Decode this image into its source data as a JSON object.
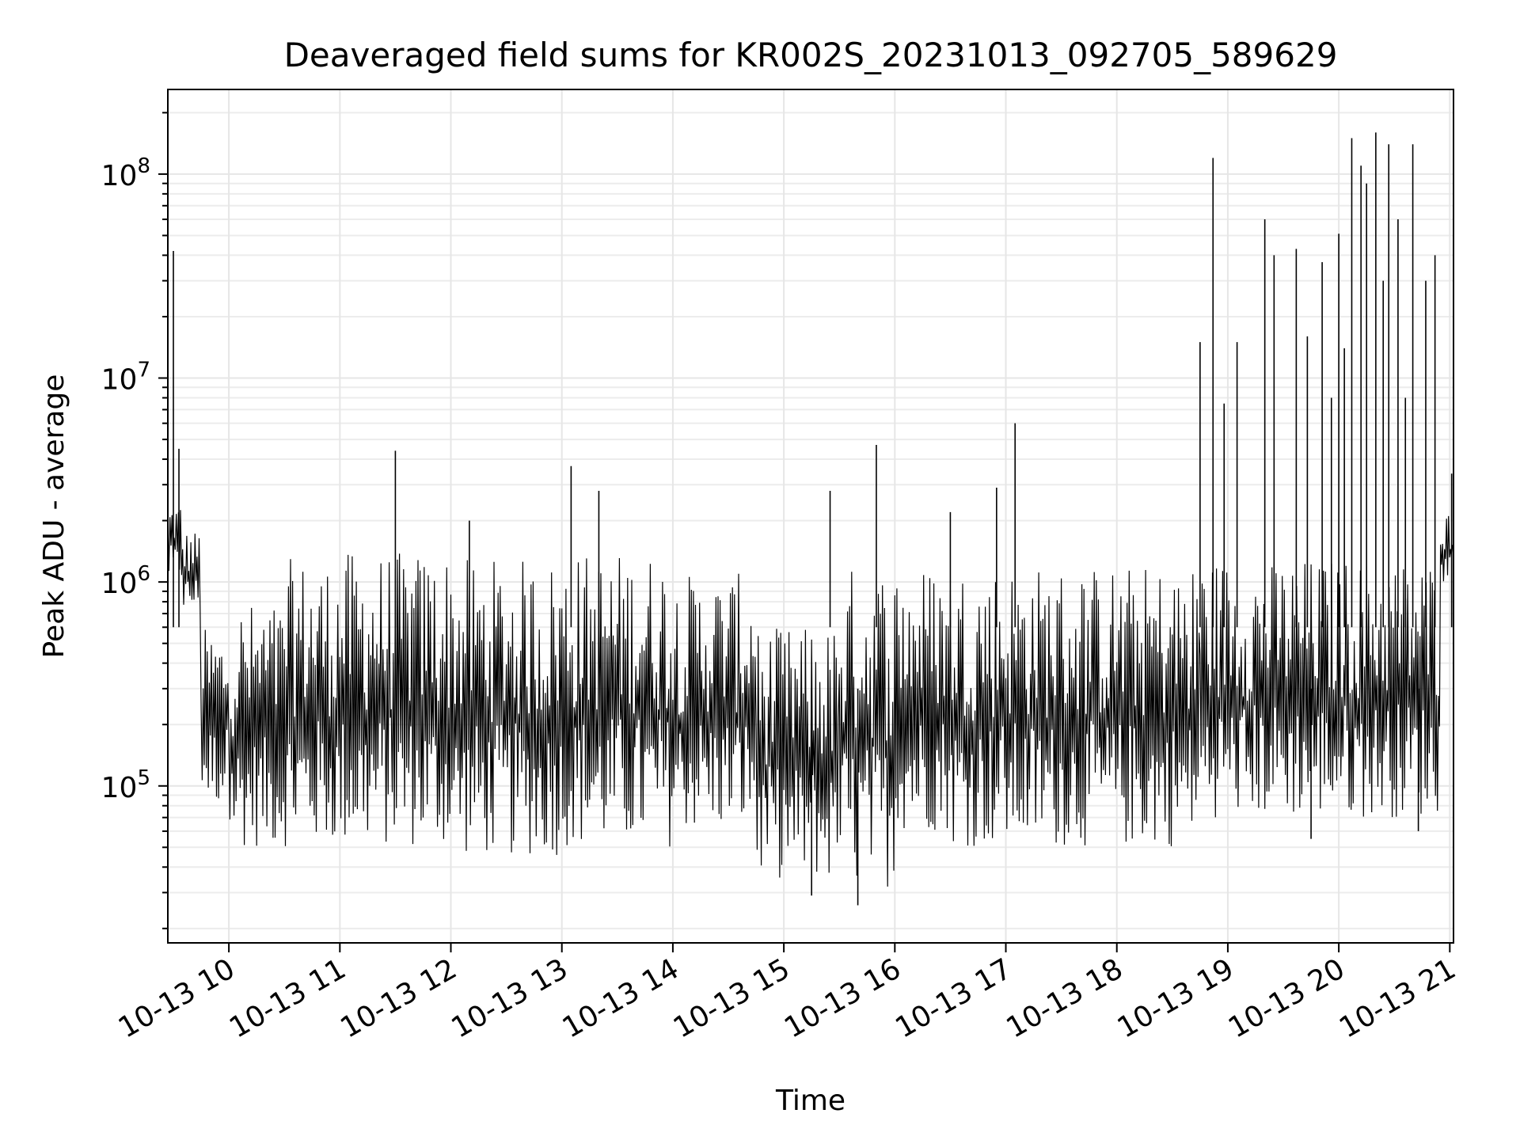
{
  "chart_data": {
    "type": "line",
    "title": "Deaveraged field sums for KR002S_20231013_092705_589629",
    "xlabel": "Time",
    "ylabel": "Peak ADU - average",
    "yscale": "log",
    "ylim": [
      17000,
      260000000
    ],
    "xlim": [
      "2023-10-13T09:27",
      "2023-10-13T21:02"
    ],
    "grid": true,
    "line_color": "#000000",
    "xticks": [
      {
        "value": "2023-10-13T10:00",
        "label": "10-13 10"
      },
      {
        "value": "2023-10-13T11:00",
        "label": "10-13 11"
      },
      {
        "value": "2023-10-13T12:00",
        "label": "10-13 12"
      },
      {
        "value": "2023-10-13T13:00",
        "label": "10-13 13"
      },
      {
        "value": "2023-10-13T14:00",
        "label": "10-13 14"
      },
      {
        "value": "2023-10-13T15:00",
        "label": "10-13 15"
      },
      {
        "value": "2023-10-13T16:00",
        "label": "10-13 16"
      },
      {
        "value": "2023-10-13T17:00",
        "label": "10-13 17"
      },
      {
        "value": "2023-10-13T18:00",
        "label": "10-13 18"
      },
      {
        "value": "2023-10-13T19:00",
        "label": "10-13 19"
      },
      {
        "value": "2023-10-13T20:00",
        "label": "10-13 20"
      },
      {
        "value": "2023-10-13T21:00",
        "label": "10-13 21"
      }
    ],
    "yticks": [
      {
        "value": 100000,
        "base": "10",
        "exp": "5"
      },
      {
        "value": 1000000,
        "base": "10",
        "exp": "6"
      },
      {
        "value": 10000000,
        "base": "10",
        "exp": "7"
      },
      {
        "value": 100000000,
        "base": "10",
        "exp": "8"
      }
    ],
    "envelope_segments": [
      {
        "start": "2023-10-13T09:27",
        "end": "2023-10-13T09:35",
        "low": 1000000,
        "high": 2500000
      },
      {
        "start": "2023-10-13T09:35",
        "end": "2023-10-13T09:45",
        "low": 700000,
        "high": 1800000
      },
      {
        "start": "2023-10-13T09:45",
        "end": "2023-10-13T10:00",
        "low": 80000,
        "high": 600000
      },
      {
        "start": "2023-10-13T10:00",
        "end": "2023-10-13T10:30",
        "low": 50000,
        "high": 800000
      },
      {
        "start": "2023-10-13T10:30",
        "end": "2023-10-13T11:00",
        "low": 50000,
        "high": 1300000
      },
      {
        "start": "2023-10-13T11:00",
        "end": "2023-10-13T12:00",
        "low": 50000,
        "high": 1400000
      },
      {
        "start": "2023-10-13T12:00",
        "end": "2023-10-13T13:00",
        "low": 45000,
        "high": 1300000
      },
      {
        "start": "2023-10-13T13:00",
        "end": "2023-10-13T14:00",
        "low": 50000,
        "high": 1400000
      },
      {
        "start": "2023-10-13T14:00",
        "end": "2023-10-13T14:45",
        "low": 60000,
        "high": 1100000
      },
      {
        "start": "2023-10-13T14:45",
        "end": "2023-10-13T15:30",
        "low": 35000,
        "high": 600000
      },
      {
        "start": "2023-10-13T15:30",
        "end": "2023-10-13T16:00",
        "low": 32000,
        "high": 1200000
      },
      {
        "start": "2023-10-13T16:00",
        "end": "2023-10-13T16:30",
        "low": 60000,
        "high": 1200000
      },
      {
        "start": "2023-10-13T16:30",
        "end": "2023-10-13T18:45",
        "low": 50000,
        "high": 1200000
      },
      {
        "start": "2023-10-13T18:45",
        "end": "2023-10-13T20:55",
        "low": 70000,
        "high": 1300000
      },
      {
        "start": "2023-10-13T20:55",
        "end": "2023-10-13T21:02",
        "low": 1000000,
        "high": 2200000
      }
    ],
    "spikes": [
      {
        "x": "2023-10-13T09:30",
        "y": 42000000
      },
      {
        "x": "2023-10-13T09:33",
        "y": 4500000
      },
      {
        "x": "2023-10-13T11:30",
        "y": 4400000
      },
      {
        "x": "2023-10-13T12:10",
        "y": 2000000
      },
      {
        "x": "2023-10-13T13:05",
        "y": 3700000
      },
      {
        "x": "2023-10-13T13:20",
        "y": 2800000
      },
      {
        "x": "2023-10-13T15:25",
        "y": 2800000
      },
      {
        "x": "2023-10-13T15:50",
        "y": 4700000
      },
      {
        "x": "2023-10-13T16:30",
        "y": 2200000
      },
      {
        "x": "2023-10-13T16:55",
        "y": 2900000
      },
      {
        "x": "2023-10-13T17:05",
        "y": 6000000
      },
      {
        "x": "2023-10-13T18:45",
        "y": 15000000
      },
      {
        "x": "2023-10-13T18:52",
        "y": 120000000
      },
      {
        "x": "2023-10-13T18:58",
        "y": 7500000
      },
      {
        "x": "2023-10-13T19:05",
        "y": 15000000
      },
      {
        "x": "2023-10-13T19:20",
        "y": 60000000
      },
      {
        "x": "2023-10-13T19:25",
        "y": 40000000
      },
      {
        "x": "2023-10-13T19:37",
        "y": 43000000
      },
      {
        "x": "2023-10-13T19:43",
        "y": 16000000
      },
      {
        "x": "2023-10-13T19:51",
        "y": 37000000
      },
      {
        "x": "2023-10-13T19:56",
        "y": 8000000
      },
      {
        "x": "2023-10-13T20:00",
        "y": 51000000
      },
      {
        "x": "2023-10-13T20:03",
        "y": 14000000
      },
      {
        "x": "2023-10-13T20:07",
        "y": 150000000
      },
      {
        "x": "2023-10-13T20:12",
        "y": 110000000
      },
      {
        "x": "2023-10-13T20:15",
        "y": 90000000
      },
      {
        "x": "2023-10-13T20:20",
        "y": 160000000
      },
      {
        "x": "2023-10-13T20:24",
        "y": 30000000
      },
      {
        "x": "2023-10-13T20:27",
        "y": 140000000
      },
      {
        "x": "2023-10-13T20:32",
        "y": 60000000
      },
      {
        "x": "2023-10-13T20:36",
        "y": 8000000
      },
      {
        "x": "2023-10-13T20:40",
        "y": 140000000
      },
      {
        "x": "2023-10-13T20:47",
        "y": 30000000
      },
      {
        "x": "2023-10-13T20:52",
        "y": 40000000
      },
      {
        "x": "2023-10-13T21:01",
        "y": 3400000
      }
    ],
    "dips": [
      {
        "x": "2023-10-13T15:40",
        "y": 26000
      },
      {
        "x": "2023-10-13T15:15",
        "y": 29000
      },
      {
        "x": "2023-10-13T19:45",
        "y": 55000
      },
      {
        "x": "2023-10-13T20:43",
        "y": 60000
      }
    ]
  }
}
